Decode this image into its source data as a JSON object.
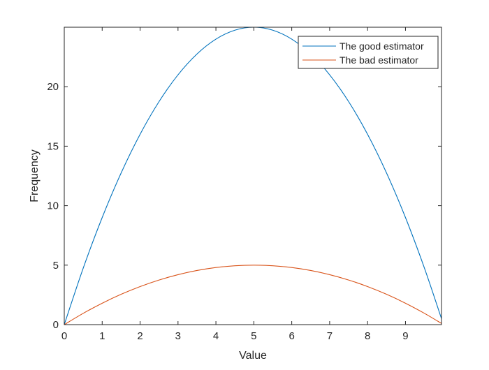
{
  "chart_data": {
    "type": "line",
    "title": "",
    "xlabel": "Value",
    "ylabel": "Frequency",
    "xlim": [
      0,
      9.95
    ],
    "ylim": [
      0,
      25
    ],
    "xticks": [
      0,
      1,
      2,
      3,
      4,
      5,
      6,
      7,
      8,
      9
    ],
    "yticks": [
      0,
      5,
      10,
      15,
      20
    ],
    "grid": false,
    "legend_position": "top-right",
    "x": [
      0,
      0.5,
      1,
      1.5,
      2,
      2.5,
      3,
      3.5,
      4,
      4.5,
      5,
      5.5,
      6,
      6.5,
      7,
      7.5,
      8,
      8.5,
      9,
      9.5,
      9.95
    ],
    "series": [
      {
        "name": "The good estimator",
        "color": "#0072BD",
        "values": [
          0,
          4.75,
          9,
          12.75,
          16,
          18.75,
          21,
          22.75,
          24,
          24.75,
          25,
          24.75,
          24,
          22.75,
          21,
          18.75,
          16,
          12.75,
          9,
          4.75,
          0.4975
        ]
      },
      {
        "name": "The bad estimator",
        "color": "#D95319",
        "values": [
          0,
          0.95,
          1.8,
          2.55,
          3.2,
          3.75,
          4.2,
          4.55,
          4.8,
          4.95,
          5,
          4.95,
          4.8,
          4.55,
          4.2,
          3.75,
          3.2,
          2.55,
          1.8,
          0.95,
          0.0995
        ]
      }
    ]
  }
}
